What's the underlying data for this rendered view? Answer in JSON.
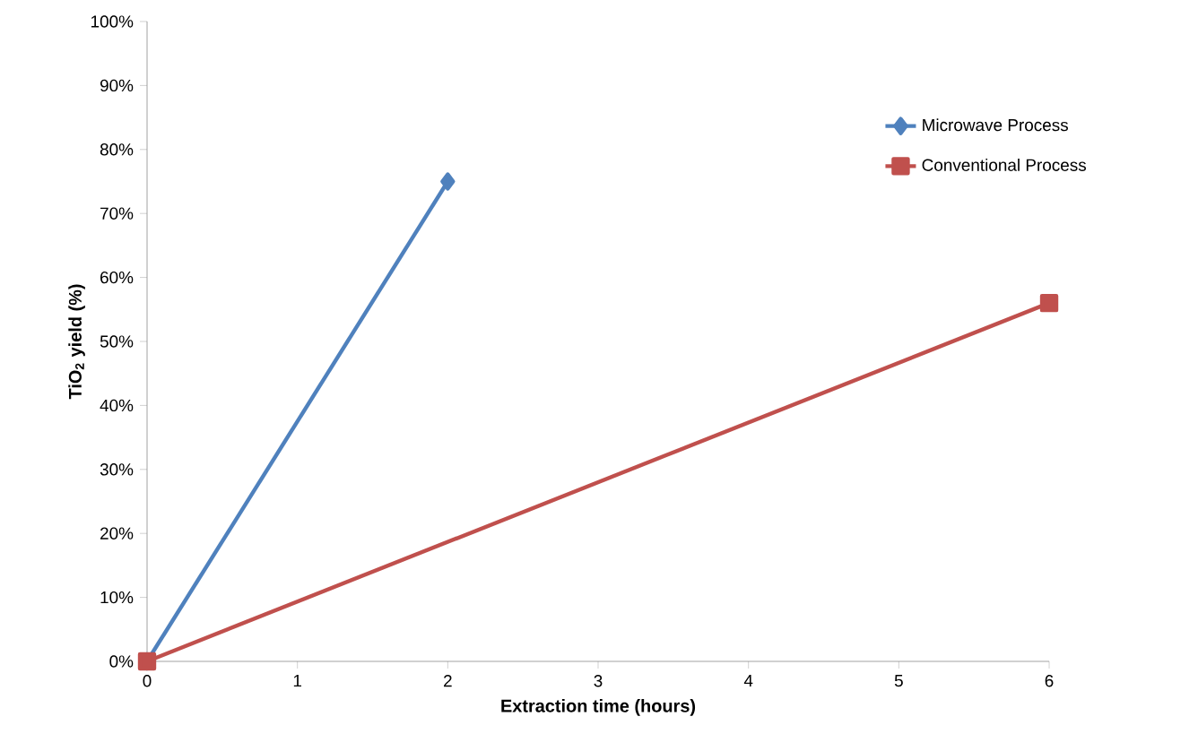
{
  "chart_data": {
    "type": "line",
    "xlabel": "Extraction time (hours)",
    "ylabel": "TiO$_{2}$ yield (%)",
    "series": [
      {
        "name": "Microwave Process",
        "color": "#4f81bd",
        "marker": "diamond",
        "x": [
          0,
          2
        ],
        "values": [
          0,
          75
        ]
      },
      {
        "name": "Conventional Process",
        "color": "#c0504d",
        "marker": "square",
        "x": [
          0,
          6
        ],
        "values": [
          0,
          56
        ]
      }
    ],
    "xlim": [
      0,
      6
    ],
    "xticks": [
      0,
      1,
      2,
      3,
      4,
      5,
      6
    ],
    "ylim": [
      0,
      100
    ],
    "yticks": [
      {
        "value": 0,
        "label": "0%"
      },
      {
        "value": 10,
        "label": "10%"
      },
      {
        "value": 20,
        "label": "20%"
      },
      {
        "value": 30,
        "label": "30%"
      },
      {
        "value": 40,
        "label": "40%"
      },
      {
        "value": 50,
        "label": "50%"
      },
      {
        "value": 60,
        "label": "60%"
      },
      {
        "value": 70,
        "label": "70%"
      },
      {
        "value": 80,
        "label": "80%"
      },
      {
        "value": 90,
        "label": "90%"
      },
      {
        "value": 100,
        "label": "100%"
      }
    ],
    "legend": "right",
    "grid": false,
    "line_style": "solid"
  }
}
